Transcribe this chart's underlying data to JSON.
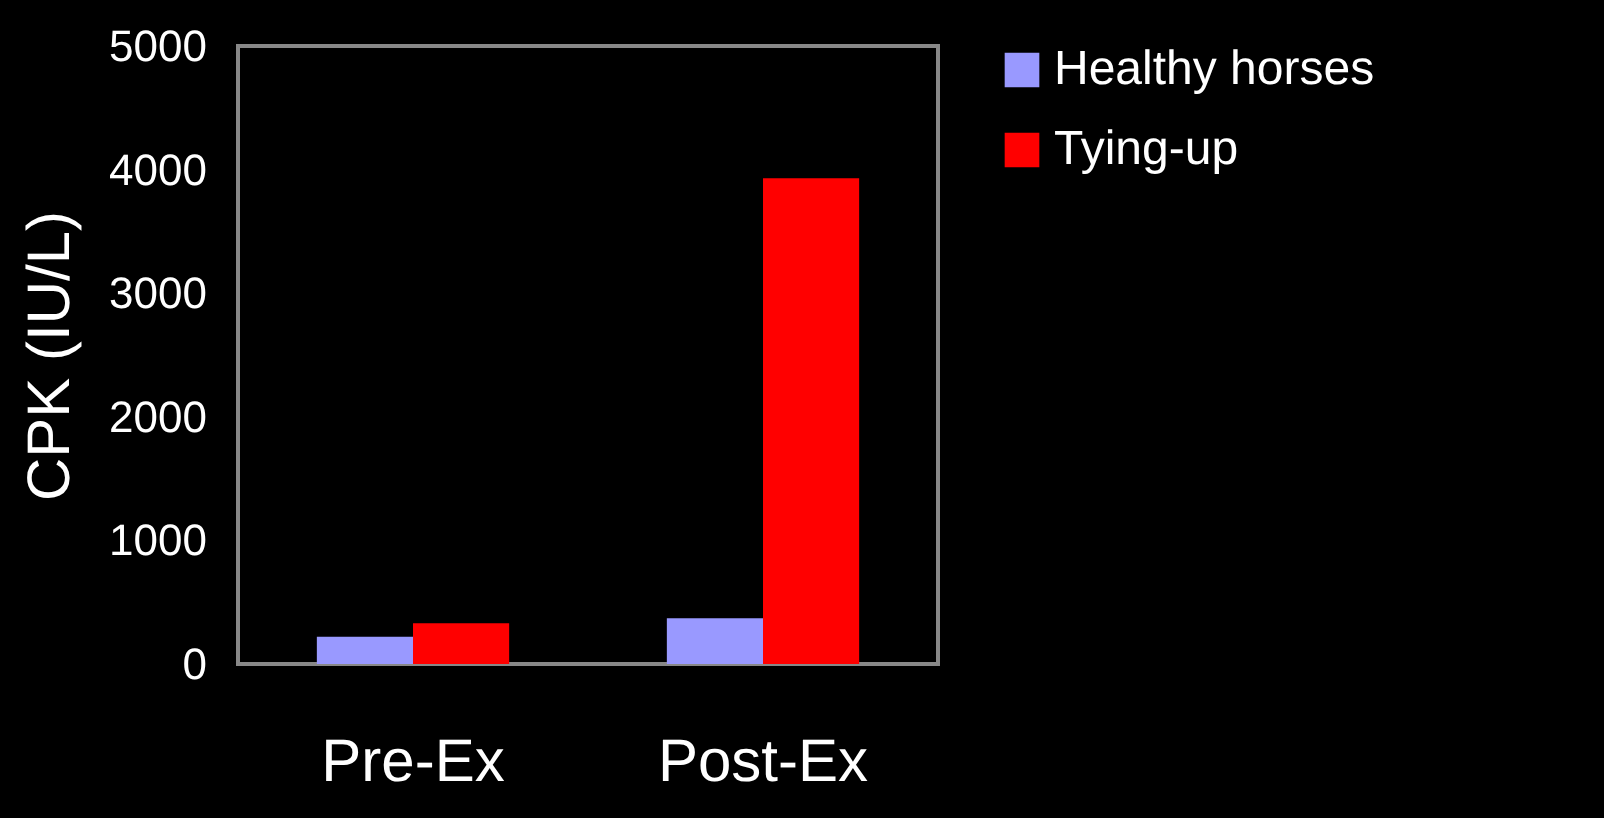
{
  "chart_data": {
    "type": "bar",
    "ylabel": "CPK (IU/L)",
    "categories": [
      "Pre-Ex",
      "Post-Ex"
    ],
    "series": [
      {
        "name": "Healthy horses",
        "color": "#9999ff",
        "values": [
          220,
          370
        ]
      },
      {
        "name": "Tying-up",
        "color": "#ff0000",
        "values": [
          330,
          3930
        ]
      }
    ],
    "ylim": [
      0,
      5000
    ],
    "yticks": [
      0,
      1000,
      2000,
      3000,
      4000,
      5000
    ],
    "grid": false,
    "legend": "right"
  }
}
